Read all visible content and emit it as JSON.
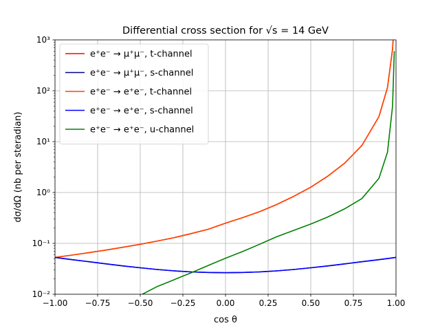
{
  "chart_data": {
    "type": "line",
    "title": "Differential cross section for √s = 14 GeV",
    "xlabel": "cos θ",
    "ylabel": "dσ/dΩ (nb per steradian)",
    "xlim": [
      -1.0,
      1.0
    ],
    "ylim": [
      0.01,
      1000
    ],
    "yscale": "log",
    "grid": true,
    "legend_position": "top-left",
    "x_ticks": [
      "−1.00",
      "−0.75",
      "−0.50",
      "−0.25",
      "0.00",
      "0.25",
      "0.50",
      "0.75",
      "1.00"
    ],
    "y_ticks": [
      "10⁻²",
      "10⁻¹",
      "10⁰",
      "10¹",
      "10²",
      "10³"
    ],
    "x": [
      -1.0,
      -0.9,
      -0.8,
      -0.7,
      -0.6,
      -0.5,
      -0.4,
      -0.3,
      -0.2,
      -0.1,
      0.0,
      0.1,
      0.2,
      0.3,
      0.4,
      0.5,
      0.6,
      0.7,
      0.8,
      0.9,
      0.95,
      0.98,
      0.99
    ],
    "series": [
      {
        "name": "e⁺e⁻ → μ⁺μ⁻, t-channel",
        "color": "#ff0000",
        "x": [
          -1.0,
          -0.9,
          -0.8,
          -0.7,
          -0.6,
          -0.5,
          -0.4,
          -0.3,
          -0.2,
          -0.1,
          0.0,
          0.1,
          0.2,
          0.3,
          0.4,
          0.5,
          0.6,
          0.7,
          0.8,
          0.9,
          0.95,
          0.98,
          0.99
        ],
        "values": [
          0.053,
          0.059,
          0.066,
          0.074,
          0.084,
          0.096,
          0.111,
          0.13,
          0.156,
          0.19,
          0.25,
          0.32,
          0.42,
          0.58,
          0.84,
          1.27,
          2.1,
          3.8,
          8.4,
          31,
          115,
          660,
          2400
        ]
      },
      {
        "name": "e⁺e⁻ → μ⁺μ⁻, s-channel",
        "color": "#00008b",
        "x": [
          -1.0,
          -0.9,
          -0.8,
          -0.7,
          -0.6,
          -0.5,
          -0.4,
          -0.3,
          -0.2,
          -0.1,
          0.0,
          0.1,
          0.2,
          0.3,
          0.4,
          0.5,
          0.6,
          0.7,
          0.8,
          0.9,
          1.0
        ],
        "values": [
          0.053,
          0.0478,
          0.0436,
          0.0396,
          0.036,
          0.0331,
          0.0307,
          0.0288,
          0.0275,
          0.0268,
          0.0265,
          0.0268,
          0.0275,
          0.0288,
          0.0307,
          0.0331,
          0.036,
          0.0396,
          0.0436,
          0.0478,
          0.053
        ]
      },
      {
        "name": "e⁺e⁻ → e⁺e⁻, t-channel",
        "color": "#ff4500",
        "x": [
          -1.0,
          -0.9,
          -0.8,
          -0.7,
          -0.6,
          -0.5,
          -0.4,
          -0.3,
          -0.2,
          -0.1,
          0.0,
          0.1,
          0.2,
          0.3,
          0.4,
          0.5,
          0.6,
          0.7,
          0.8,
          0.9,
          0.95,
          0.98,
          0.99
        ],
        "values": [
          0.053,
          0.059,
          0.066,
          0.074,
          0.084,
          0.096,
          0.111,
          0.13,
          0.156,
          0.19,
          0.25,
          0.32,
          0.42,
          0.58,
          0.84,
          1.27,
          2.1,
          3.8,
          8.4,
          31,
          115,
          660,
          2400
        ]
      },
      {
        "name": "e⁺e⁻ → e⁺e⁻, s-channel",
        "color": "#0000ff",
        "x": [
          -1.0,
          -0.9,
          -0.8,
          -0.7,
          -0.6,
          -0.5,
          -0.4,
          -0.3,
          -0.2,
          -0.1,
          0.0,
          0.1,
          0.2,
          0.3,
          0.4,
          0.5,
          0.6,
          0.7,
          0.8,
          0.9,
          1.0
        ],
        "values": [
          0.053,
          0.0478,
          0.0436,
          0.0396,
          0.036,
          0.0331,
          0.0307,
          0.0288,
          0.0275,
          0.0268,
          0.0265,
          0.0268,
          0.0275,
          0.0288,
          0.0307,
          0.0331,
          0.036,
          0.0396,
          0.0436,
          0.0478,
          0.053
        ]
      },
      {
        "name": "e⁺e⁻ → e⁺e⁻, u-channel",
        "color": "#008000",
        "x": [
          -0.5,
          -0.4,
          -0.3,
          -0.2,
          -0.1,
          0.0,
          0.1,
          0.2,
          0.3,
          0.4,
          0.5,
          0.6,
          0.7,
          0.8,
          0.9,
          0.95,
          0.98,
          0.99
        ],
        "values": [
          0.0095,
          0.0142,
          0.0194,
          0.0266,
          0.037,
          0.051,
          0.069,
          0.096,
          0.135,
          0.18,
          0.24,
          0.33,
          0.48,
          0.76,
          1.9,
          6.2,
          50,
          600
        ]
      }
    ]
  }
}
